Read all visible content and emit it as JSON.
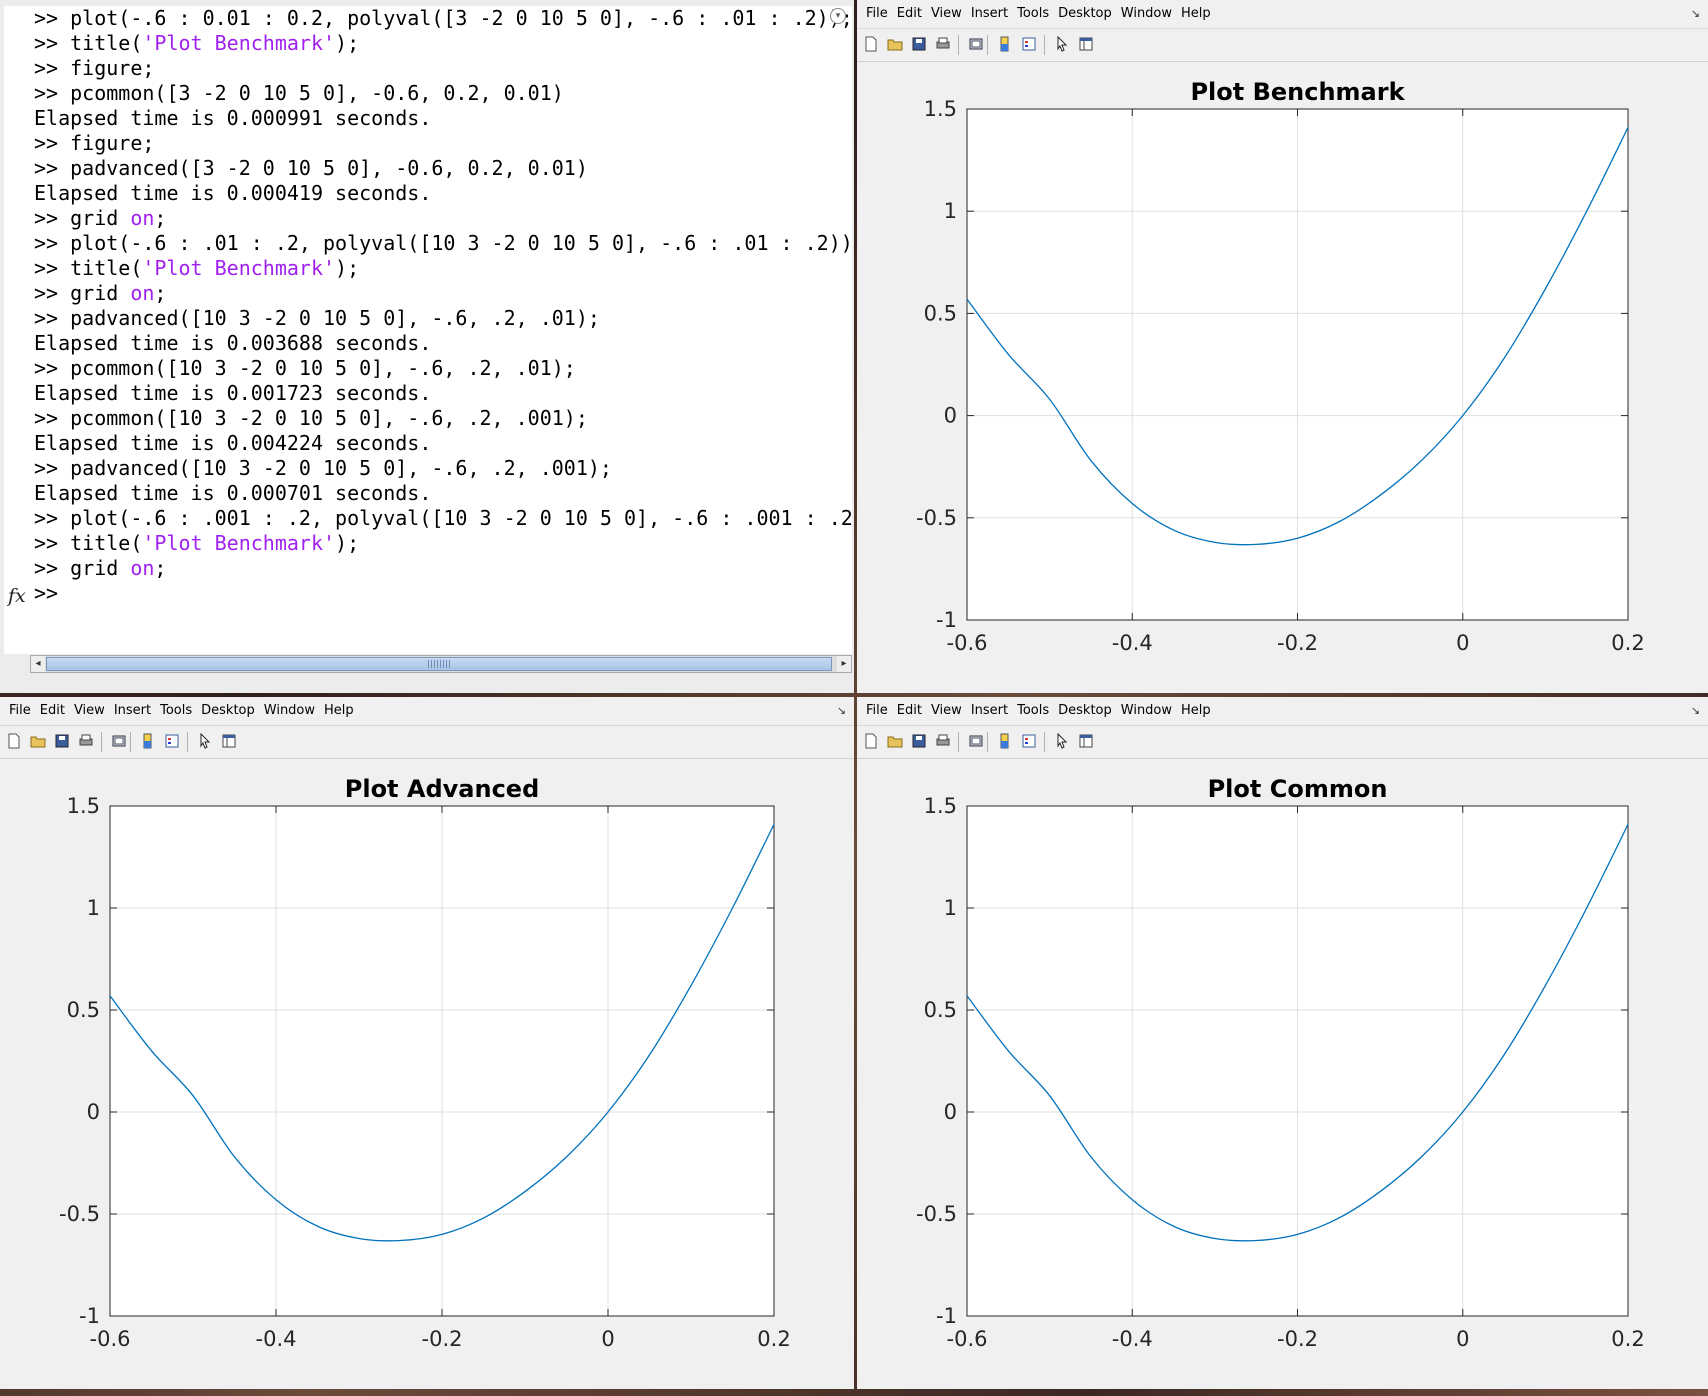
{
  "command_window": {
    "lines": [
      [
        {
          "t": ">> plot(-.6 : 0.01 : 0.2, polyval([3 -2 0 10 5 0], -.6 : .01 : .2));"
        }
      ],
      [
        {
          "t": ">> title("
        },
        {
          "t": "'Plot Benchmark'",
          "c": "str"
        },
        {
          "t": ");"
        }
      ],
      [
        {
          "t": ">> figure;"
        }
      ],
      [
        {
          "t": ">> pcommon([3 -2 0 10 5 0], -0.6, 0.2, 0.01)"
        }
      ],
      [
        {
          "t": "Elapsed time is 0.000991 seconds."
        }
      ],
      [
        {
          "t": ">> figure;"
        }
      ],
      [
        {
          "t": ">> padvanced([3 -2 0 10 5 0], -0.6, 0.2, 0.01)"
        }
      ],
      [
        {
          "t": "Elapsed time is 0.000419 seconds."
        }
      ],
      [
        {
          "t": ">> grid "
        },
        {
          "t": "on",
          "c": "kw"
        },
        {
          "t": ";"
        }
      ],
      [
        {
          "t": ">> plot(-.6 : .01 : .2, polyval([10 3 -2 0 10 5 0], -.6 : .01 : .2))"
        }
      ],
      [
        {
          "t": ">> title("
        },
        {
          "t": "'Plot Benchmark'",
          "c": "str"
        },
        {
          "t": ");"
        }
      ],
      [
        {
          "t": ">> grid "
        },
        {
          "t": "on",
          "c": "kw"
        },
        {
          "t": ";"
        }
      ],
      [
        {
          "t": ">> padvanced([10 3 -2 0 10 5 0], -.6, .2, .01);"
        }
      ],
      [
        {
          "t": "Elapsed time is 0.003688 seconds."
        }
      ],
      [
        {
          "t": ">> pcommon([10 3 -2 0 10 5 0], -.6, .2, .01);"
        }
      ],
      [
        {
          "t": "Elapsed time is 0.001723 seconds."
        }
      ],
      [
        {
          "t": ">> pcommon([10 3 -2 0 10 5 0], -.6, .2, .001);"
        }
      ],
      [
        {
          "t": "Elapsed time is 0.004224 seconds."
        }
      ],
      [
        {
          "t": ">> padvanced([10 3 -2 0 10 5 0], -.6, .2, .001);"
        }
      ],
      [
        {
          "t": "Elapsed time is 0.000701 seconds."
        }
      ],
      [
        {
          "t": ">> plot(-.6 : .001 : .2, polyval([10 3 -2 0 10 5 0], -.6 : .001 : .2"
        }
      ],
      [
        {
          "t": ">> title("
        },
        {
          "t": "'Plot Benchmark'",
          "c": "str"
        },
        {
          "t": ");"
        }
      ],
      [
        {
          "t": ">> grid "
        },
        {
          "t": "on",
          "c": "kw"
        },
        {
          "t": ";"
        }
      ],
      [
        {
          "t": ">>"
        }
      ]
    ],
    "fx_label": "fx",
    "string_color": "#a020f0"
  },
  "figure_menu": [
    "File",
    "Edit",
    "View",
    "Insert",
    "Tools",
    "Desktop",
    "Window",
    "Help"
  ],
  "toolbar_icons": [
    "new-figure-icon",
    "open-file-icon",
    "save-icon",
    "print-icon",
    "print-preview-icon",
    "colorbar-icon",
    "legend-icon",
    "select-arrow-icon",
    "property-editor-icon"
  ],
  "chart_data": [
    {
      "id": "benchmark",
      "type": "line",
      "title": "Plot Benchmark",
      "xlabel": "",
      "ylabel": "",
      "xlim": [
        -0.6,
        0.2
      ],
      "ylim": [
        -1,
        1.5
      ],
      "xticks": [
        -0.6,
        -0.4,
        -0.2,
        0,
        0.2
      ],
      "xtick_labels": [
        "-0.6",
        "-0.4",
        "-0.2",
        "0",
        "0.2"
      ],
      "yticks": [
        -1,
        -0.5,
        0,
        0.5,
        1,
        1.5
      ],
      "ytick_labels": [
        "-1",
        "-0.5",
        "0",
        "0.5",
        "1",
        "1.5"
      ],
      "grid": true,
      "line_color": "#0072bd",
      "x": [
        -0.6,
        -0.55,
        -0.5,
        -0.45,
        -0.4,
        -0.35,
        -0.3,
        -0.25,
        -0.2,
        -0.15,
        -0.1,
        -0.05,
        0,
        0.05,
        0.1,
        0.15,
        0.2
      ],
      "y": [
        0.57,
        0.3,
        0.08,
        -0.22,
        -0.43,
        -0.56,
        -0.62,
        -0.63,
        -0.6,
        -0.52,
        -0.39,
        -0.22,
        0.0,
        0.28,
        0.62,
        1.0,
        1.41
      ]
    },
    {
      "id": "advanced",
      "type": "line",
      "title": "Plot Advanced",
      "xlabel": "",
      "ylabel": "",
      "xlim": [
        -0.6,
        0.2
      ],
      "ylim": [
        -1,
        1.5
      ],
      "xticks": [
        -0.6,
        -0.4,
        -0.2,
        0,
        0.2
      ],
      "xtick_labels": [
        "-0.6",
        "-0.4",
        "-0.2",
        "0",
        "0.2"
      ],
      "yticks": [
        -1,
        -0.5,
        0,
        0.5,
        1,
        1.5
      ],
      "ytick_labels": [
        "-1",
        "-0.5",
        "0",
        "0.5",
        "1",
        "1.5"
      ],
      "grid": true,
      "line_color": "#0072bd",
      "x": [
        -0.6,
        -0.55,
        -0.5,
        -0.45,
        -0.4,
        -0.35,
        -0.3,
        -0.25,
        -0.2,
        -0.15,
        -0.1,
        -0.05,
        0,
        0.05,
        0.1,
        0.15,
        0.2
      ],
      "y": [
        0.57,
        0.3,
        0.08,
        -0.22,
        -0.43,
        -0.56,
        -0.62,
        -0.63,
        -0.6,
        -0.52,
        -0.39,
        -0.22,
        0.0,
        0.28,
        0.62,
        1.0,
        1.41
      ]
    },
    {
      "id": "common",
      "type": "line",
      "title": "Plot Common",
      "xlabel": "",
      "ylabel": "",
      "xlim": [
        -0.6,
        0.2
      ],
      "ylim": [
        -1,
        1.5
      ],
      "xticks": [
        -0.6,
        -0.4,
        -0.2,
        0,
        0.2
      ],
      "xtick_labels": [
        "-0.6",
        "-0.4",
        "-0.2",
        "0",
        "0.2"
      ],
      "yticks": [
        -1,
        -0.5,
        0,
        0.5,
        1,
        1.5
      ],
      "ytick_labels": [
        "-1",
        "-0.5",
        "0",
        "0.5",
        "1",
        "1.5"
      ],
      "grid": true,
      "line_color": "#0072bd",
      "x": [
        -0.6,
        -0.55,
        -0.5,
        -0.45,
        -0.4,
        -0.35,
        -0.3,
        -0.25,
        -0.2,
        -0.15,
        -0.1,
        -0.05,
        0,
        0.05,
        0.1,
        0.15,
        0.2
      ],
      "y": [
        0.57,
        0.3,
        0.08,
        -0.22,
        -0.43,
        -0.56,
        -0.62,
        -0.63,
        -0.6,
        -0.52,
        -0.39,
        -0.22,
        0.0,
        0.28,
        0.62,
        1.0,
        1.41
      ]
    }
  ]
}
